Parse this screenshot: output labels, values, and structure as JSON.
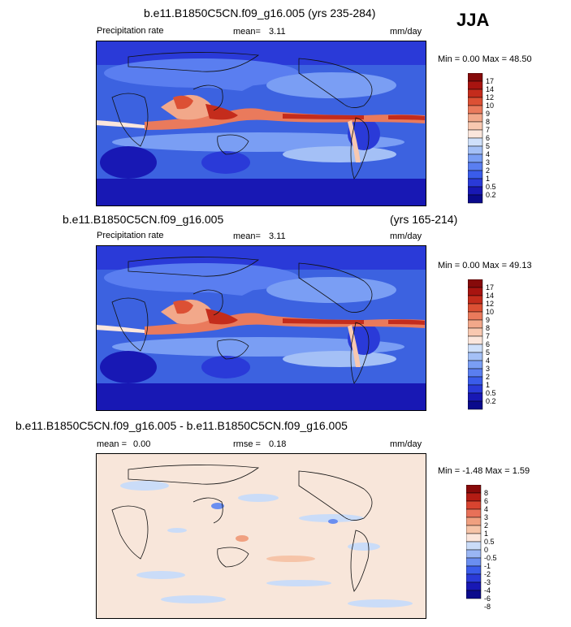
{
  "season": "JJA",
  "colors": {
    "abs_scale": [
      "#0a0a8c",
      "#1818b4",
      "#2a3ad8",
      "#3a5cea",
      "#5a7ef0",
      "#7a9ef4",
      "#a4c0f6",
      "#cfe0fa",
      "#fbe6dc",
      "#f8c8b0",
      "#f2a88a",
      "#ea7a5c",
      "#dc5034",
      "#c42c1c",
      "#a81410",
      "#860a0a"
    ],
    "diff_scale": [
      "#0a0a8c",
      "#1818b4",
      "#2a3ad8",
      "#3a5cea",
      "#6a8ef0",
      "#9ab6f4",
      "#cadcf8",
      "#fbe6dc",
      "#f6c4a8",
      "#f0a080",
      "#e87058",
      "#d84430",
      "#b41c14",
      "#880a0a"
    ],
    "ocean_background": "#3c62e0",
    "diff_background": "#f8e6da"
  },
  "panels": [
    {
      "title": "b.e11.B1850C5CN.f09_g16.005 (yrs 235-284)",
      "subtitle": "",
      "variable": "Precipitation rate",
      "mean_label": "mean=",
      "mean_value": "3.11",
      "units": "mm/day",
      "minmax": "Min =   0.00 Max =  48.50"
    },
    {
      "title": "b.e11.B1850C5CN.f09_g16.005",
      "subtitle": "(yrs 165-214)",
      "variable": "Precipitation rate",
      "mean_label": "mean=",
      "mean_value": "3.11",
      "units": "mm/day",
      "minmax": "Min =   0.00 Max =  49.13"
    },
    {
      "title": "b.e11.B1850C5CN.f09_g16.005 - b.e11.B1850C5CN.f09_g16.005",
      "mean_label": "mean =",
      "mean_value": "0.00",
      "rmse_label": "rmse =",
      "rmse_value": "0.18",
      "units": "mm/day",
      "minmax": "Min =  -1.48 Max =   1.59"
    }
  ],
  "chart_data": [
    {
      "type": "heatmap",
      "title": "b.e11.B1850C5CN.f09_g16.005 (yrs 235-284)",
      "variable": "Precipitation rate",
      "units": "mm/day",
      "mean": 3.11,
      "min": 0.0,
      "max": 48.5,
      "colorbar_levels": [
        "17",
        "14",
        "12",
        "10",
        "9",
        "8",
        "7",
        "6",
        "5",
        "4",
        "3",
        "2",
        "1",
        "0.5",
        "0.2"
      ]
    },
    {
      "type": "heatmap",
      "title": "b.e11.B1850C5CN.f09_g16.005 (yrs 165-214)",
      "variable": "Precipitation rate",
      "units": "mm/day",
      "mean": 3.11,
      "min": 0.0,
      "max": 49.13,
      "colorbar_levels": [
        "17",
        "14",
        "12",
        "10",
        "9",
        "8",
        "7",
        "6",
        "5",
        "4",
        "3",
        "2",
        "1",
        "0.5",
        "0.2"
      ]
    },
    {
      "type": "heatmap",
      "title": "b.e11.B1850C5CN.f09_g16.005 - b.e11.B1850C5CN.f09_g16.005",
      "units": "mm/day",
      "mean": 0.0,
      "rmse": 0.18,
      "min": -1.48,
      "max": 1.59,
      "colorbar_levels": [
        "8",
        "6",
        "4",
        "3",
        "2",
        "1",
        "0.5",
        "0",
        "-0.5",
        "-1",
        "-2",
        "-3",
        "-4",
        "-6",
        "-8"
      ]
    }
  ]
}
